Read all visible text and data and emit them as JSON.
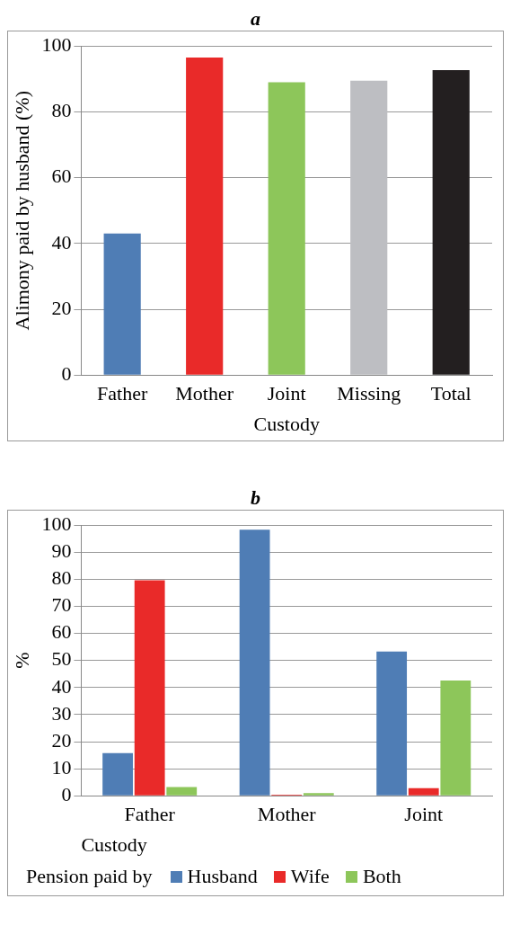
{
  "chart_data": [
    {
      "type": "bar",
      "title": "a",
      "xlabel": "Custody",
      "ylabel": "Alimony paid by husband (%)",
      "categories": [
        "Father",
        "Mother",
        "Joint",
        "Missing",
        "Total"
      ],
      "values": [
        43,
        96.5,
        89,
        89.5,
        92.7
      ],
      "colors": [
        "#4f7db5",
        "#e92a29",
        "#8dc65a",
        "#bdbec2",
        "#231f20"
      ],
      "ylim": [
        0,
        100
      ],
      "yticks": [
        0,
        20,
        40,
        60,
        80,
        100
      ],
      "grid": "y",
      "legend": false
    },
    {
      "type": "bar",
      "title": "b",
      "xlabel": "Custody",
      "ylabel": "%",
      "legend_title": "Pension paid by",
      "categories": [
        "Father",
        "Mother",
        "Joint"
      ],
      "series": [
        {
          "name": "Husband",
          "color": "#4f7db5",
          "values": [
            15.8,
            98.3,
            53.3
          ]
        },
        {
          "name": "Wife",
          "color": "#e92a29",
          "values": [
            79.6,
            0.4,
            2.8
          ]
        },
        {
          "name": "Both",
          "color": "#8dc65a",
          "values": [
            3.2,
            1,
            42.6
          ]
        }
      ],
      "ylim": [
        0,
        100
      ],
      "yticks": [
        0,
        10,
        20,
        30,
        40,
        50,
        60,
        70,
        80,
        90,
        100
      ],
      "grid": "y",
      "legend": "bottom"
    }
  ]
}
